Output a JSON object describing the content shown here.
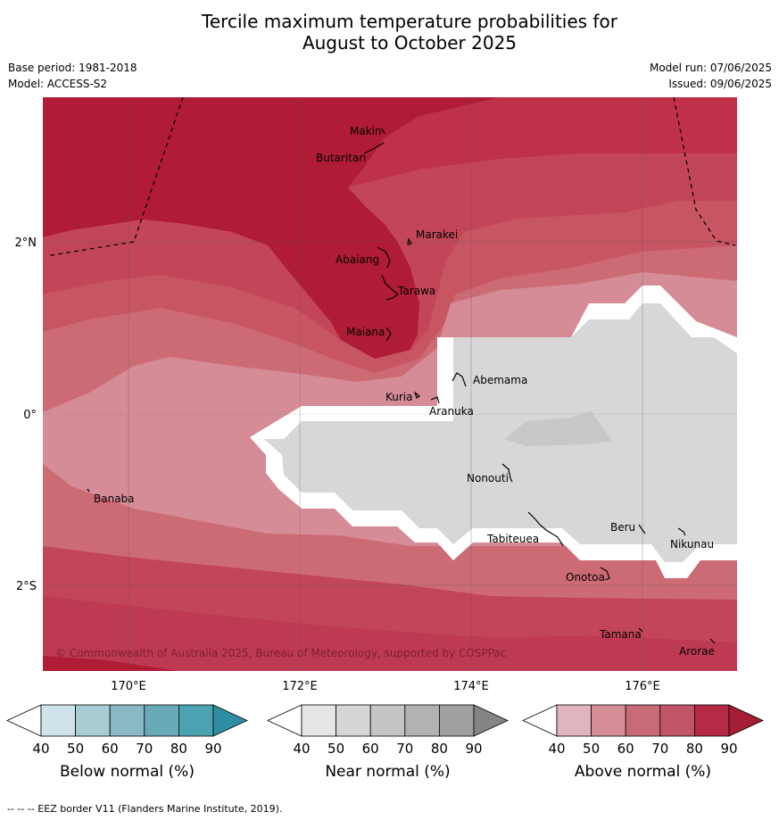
{
  "title_line1": "Tercile maximum temperature probabilities for",
  "title_line2": "August to October 2025",
  "meta": {
    "base_period": "Base period: 1981-2018",
    "model": "Model: ACCESS-S2",
    "model_run": "Model run: 07/06/2025",
    "issued": "Issued: 09/06/2025"
  },
  "axes": {
    "lon_ticks": [
      "170°E",
      "172°E",
      "174°E",
      "176°E"
    ],
    "lat_ticks": [
      "2°N",
      "0°",
      "2°S"
    ]
  },
  "islands": [
    {
      "name": "Makin"
    },
    {
      "name": "Butaritari"
    },
    {
      "name": "Marakei"
    },
    {
      "name": "Abaiang"
    },
    {
      "name": "Tarawa"
    },
    {
      "name": "Maiana"
    },
    {
      "name": "Abemama"
    },
    {
      "name": "Kuria"
    },
    {
      "name": "Aranuka"
    },
    {
      "name": "Banaba"
    },
    {
      "name": "Nonouti"
    },
    {
      "name": "Tabiteuea"
    },
    {
      "name": "Beru"
    },
    {
      "name": "Nikunau"
    },
    {
      "name": "Onotoa"
    },
    {
      "name": "Tamana"
    },
    {
      "name": "Arorae"
    }
  ],
  "copyright": "© Commonwealth of Australia 2025, Bureau of Meteorology, supported by COSPPac",
  "colorbars": [
    {
      "label": "Below normal (%)",
      "ticks": [
        "40",
        "50",
        "60",
        "70",
        "80",
        "90"
      ],
      "colors": [
        "#cfe3ea",
        "#a9cbd4",
        "#8ab8c4",
        "#6aa9b8",
        "#4ba3b2",
        "#2e8fa3"
      ]
    },
    {
      "label": "Near normal (%)",
      "ticks": [
        "40",
        "50",
        "60",
        "70",
        "80",
        "90"
      ],
      "colors": [
        "#e6e6e6",
        "#d6d6d6",
        "#c5c5c5",
        "#b2b2b2",
        "#a0a0a0",
        "#858585"
      ]
    },
    {
      "label": "Above normal (%)",
      "ticks": [
        "40",
        "50",
        "60",
        "70",
        "80",
        "90"
      ],
      "colors": [
        "#e1b5bd",
        "#d58d98",
        "#c86b77",
        "#bf5566",
        "#b52b45",
        "#a51c35"
      ]
    }
  ],
  "footer": "--  --  -- EEZ border V11 (Flanders Marine Institute, 2019)."
}
